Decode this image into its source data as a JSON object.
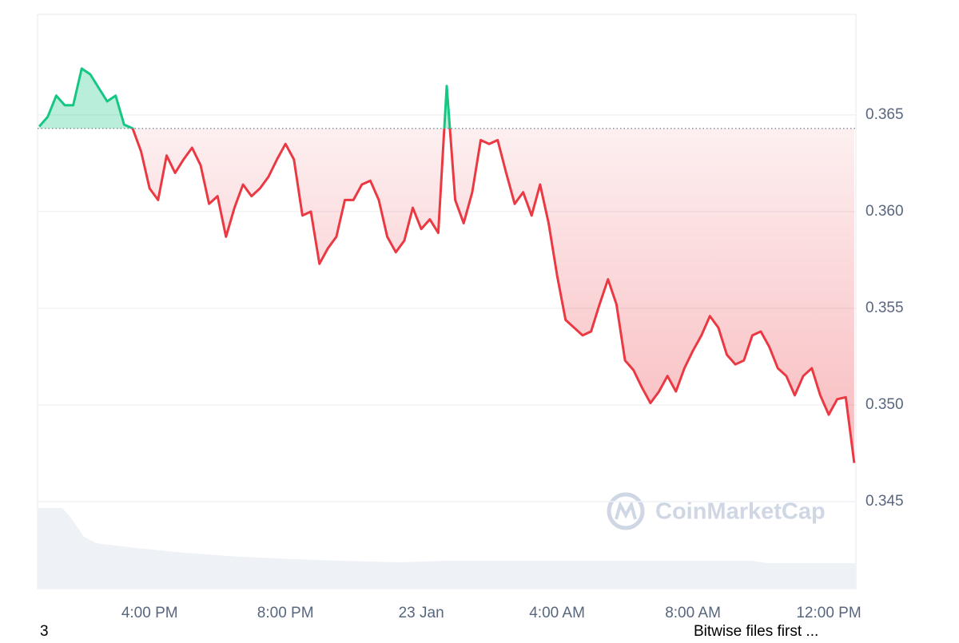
{
  "chart_data": {
    "type": "line",
    "x": [
      12.75,
      13,
      13.25,
      13.5,
      13.75,
      14,
      14.25,
      14.5,
      14.75,
      15,
      15.25,
      15.5,
      15.75,
      16,
      16.25,
      16.5,
      16.75,
      17,
      17.25,
      17.5,
      17.75,
      18,
      18.25,
      18.5,
      18.75,
      19,
      19.25,
      19.5,
      19.75,
      20,
      20.25,
      20.5,
      20.75,
      21,
      21.25,
      21.5,
      21.75,
      22,
      22.25,
      22.5,
      22.75,
      23,
      23.25,
      23.5,
      23.75,
      24,
      24.25,
      24.5,
      24.75,
      25,
      25.25,
      25.5,
      25.75,
      26,
      26.25,
      26.5,
      26.75,
      27,
      27.25,
      27.5,
      27.75,
      28,
      28.25,
      28.5,
      28.75,
      29,
      29.25,
      29.5,
      29.75,
      30,
      30.25,
      30.5,
      30.75,
      31,
      31.25,
      31.5,
      31.75,
      32,
      32.25,
      32.5,
      32.75,
      33,
      33.25,
      33.5,
      33.75,
      34,
      34.25,
      34.5,
      34.75,
      35,
      35.25,
      35.5,
      35.75,
      36,
      36.25,
      36.5,
      36.75
    ],
    "values": [
      0.3644,
      0.3649,
      0.366,
      0.3655,
      0.3655,
      0.3674,
      0.3671,
      0.3664,
      0.3657,
      0.366,
      0.3645,
      0.3643,
      0.3631,
      0.3612,
      0.3606,
      0.3629,
      0.362,
      0.3627,
      0.3633,
      0.3624,
      0.3604,
      0.3608,
      0.3587,
      0.3602,
      0.3614,
      0.3608,
      0.3612,
      0.3618,
      0.3627,
      0.3635,
      0.3627,
      0.3598,
      0.36,
      0.3573,
      0.3581,
      0.3587,
      0.3606,
      0.3606,
      0.3614,
      0.3616,
      0.3606,
      0.3587,
      0.3579,
      0.3585,
      0.3602,
      0.3591,
      0.3596,
      0.3589,
      0.3665,
      0.3606,
      0.3594,
      0.361,
      0.3637,
      0.3635,
      0.3637,
      0.362,
      0.3604,
      0.361,
      0.3598,
      0.3614,
      0.3594,
      0.3567,
      0.3544,
      0.354,
      0.3536,
      0.3538,
      0.3552,
      0.3565,
      0.3552,
      0.3523,
      0.3518,
      0.3509,
      0.3501,
      0.3507,
      0.3515,
      0.3507,
      0.3519,
      0.3528,
      0.3536,
      0.3546,
      0.354,
      0.3526,
      0.3521,
      0.3523,
      0.3536,
      0.3538,
      0.353,
      0.3519,
      0.3515,
      0.3505,
      0.3515,
      0.3519,
      0.3505,
      0.3495,
      0.3503,
      0.3504,
      0.347
    ],
    "baseline": 0.3643,
    "up_color": "#16c784",
    "down_color": "#ea3943",
    "xlim": [
      12.7,
      36.8
    ],
    "xticks": [
      {
        "value": 16,
        "label": "4:00 PM"
      },
      {
        "value": 20,
        "label": "8:00 PM"
      },
      {
        "value": 24,
        "label": "23 Jan"
      },
      {
        "value": 28,
        "label": "4:00 AM"
      },
      {
        "value": 32,
        "label": "8:00 AM"
      },
      {
        "value": 36,
        "label": "12:00 PM"
      }
    ],
    "ylim": [
      0.3405,
      0.3702
    ],
    "yticks": [
      0.345,
      {
        "value": 0.35,
        "label": "0.350"
      },
      0.355,
      {
        "value": 0.36,
        "label": "0.360"
      },
      0.365
    ],
    "grid": true,
    "watermark": "CoinMarketCap"
  },
  "footer": {
    "left": "3",
    "headline": "Bitwise files first ..."
  }
}
